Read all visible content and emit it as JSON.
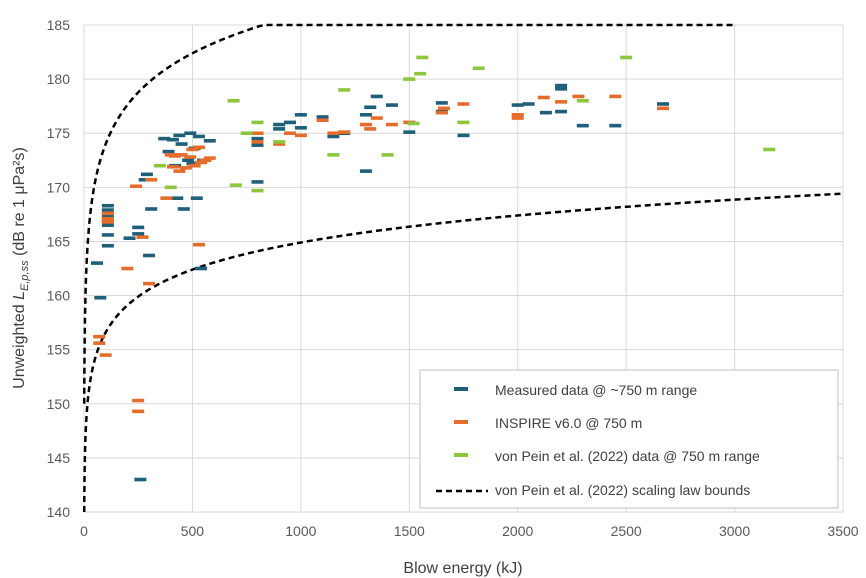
{
  "chart_data": {
    "type": "scatter",
    "xlabel": "Blow energy (kJ)",
    "ylabel_prefix": "Unweighted ",
    "ylabel_var": "L",
    "ylabel_sub": "E,p,ss",
    "ylabel_suffix": " (dB re 1 μPa²s)",
    "xlim": [
      0,
      3500
    ],
    "ylim": [
      140,
      185
    ],
    "xticks": [
      0,
      500,
      1000,
      1500,
      2000,
      2500,
      3000,
      3500
    ],
    "yticks": [
      140,
      145,
      150,
      155,
      160,
      165,
      170,
      175,
      180,
      185
    ],
    "grid": true,
    "legend_position": "bottom-right",
    "series": [
      {
        "name": "Measured data @ ~750 m range",
        "color": "#1f5f7a",
        "points": [
          [
            60,
            163
          ],
          [
            75,
            159.8
          ],
          [
            110,
            168.3
          ],
          [
            110,
            167.9
          ],
          [
            110,
            167.5
          ],
          [
            110,
            167.2
          ],
          [
            110,
            166.9
          ],
          [
            110,
            166.5
          ],
          [
            110,
            165.6
          ],
          [
            110,
            164.6
          ],
          [
            210,
            165.3
          ],
          [
            250,
            166.3
          ],
          [
            250,
            165.7
          ],
          [
            260,
            143
          ],
          [
            280,
            170.7
          ],
          [
            290,
            171.2
          ],
          [
            300,
            163.7
          ],
          [
            310,
            168
          ],
          [
            370,
            174.5
          ],
          [
            390,
            173.3
          ],
          [
            410,
            174.4
          ],
          [
            420,
            172
          ],
          [
            430,
            169
          ],
          [
            440,
            174.8
          ],
          [
            450,
            174
          ],
          [
            460,
            168
          ],
          [
            480,
            172.5
          ],
          [
            490,
            175
          ],
          [
            500,
            172.2
          ],
          [
            510,
            173.6
          ],
          [
            520,
            169
          ],
          [
            530,
            174.7
          ],
          [
            540,
            162.5
          ],
          [
            550,
            172.5
          ],
          [
            580,
            174.3
          ],
          [
            800,
            170.5
          ],
          [
            800,
            174.5
          ],
          [
            800,
            173.9
          ],
          [
            900,
            175.8
          ],
          [
            900,
            175.4
          ],
          [
            950,
            176
          ],
          [
            1000,
            176.7
          ],
          [
            1000,
            175.5
          ],
          [
            1100,
            176.5
          ],
          [
            1150,
            174.7
          ],
          [
            1200,
            175
          ],
          [
            1300,
            176.7
          ],
          [
            1300,
            171.5
          ],
          [
            1320,
            177.4
          ],
          [
            1350,
            178.4
          ],
          [
            1420,
            177.6
          ],
          [
            1500,
            175.1
          ],
          [
            1650,
            177.8
          ],
          [
            1650,
            177
          ],
          [
            1750,
            174.8
          ],
          [
            2000,
            177.6
          ],
          [
            2050,
            177.7
          ],
          [
            2130,
            176.9
          ],
          [
            2200,
            179.4
          ],
          [
            2200,
            179.1
          ],
          [
            2200,
            177
          ],
          [
            2300,
            175.7
          ],
          [
            2450,
            175.7
          ],
          [
            2670,
            177.7
          ]
        ]
      },
      {
        "name": "INSPIRE v6.0 @ 750 m",
        "color": "#e56d2c",
        "points": [
          [
            70,
            156.2
          ],
          [
            70,
            155.6
          ],
          [
            100,
            154.5
          ],
          [
            110,
            167.6
          ],
          [
            110,
            167.1
          ],
          [
            110,
            166.8
          ],
          [
            200,
            162.5
          ],
          [
            240,
            170.1
          ],
          [
            250,
            150.3
          ],
          [
            250,
            149.3
          ],
          [
            270,
            165.4
          ],
          [
            300,
            161.1
          ],
          [
            310,
            170.7
          ],
          [
            380,
            169
          ],
          [
            400,
            173
          ],
          [
            410,
            171.9
          ],
          [
            420,
            172.9
          ],
          [
            440,
            171.5
          ],
          [
            450,
            173
          ],
          [
            470,
            171.8
          ],
          [
            490,
            172.8
          ],
          [
            500,
            173.5
          ],
          [
            510,
            172
          ],
          [
            530,
            173.7
          ],
          [
            530,
            164.7
          ],
          [
            540,
            172.3
          ],
          [
            560,
            172.5
          ],
          [
            580,
            172.7
          ],
          [
            800,
            175
          ],
          [
            800,
            174.2
          ],
          [
            900,
            174
          ],
          [
            950,
            175
          ],
          [
            1000,
            174.8
          ],
          [
            1100,
            176.2
          ],
          [
            1150,
            175
          ],
          [
            1200,
            175.1
          ],
          [
            1300,
            175.8
          ],
          [
            1320,
            175.4
          ],
          [
            1350,
            176.4
          ],
          [
            1420,
            175.8
          ],
          [
            1500,
            176
          ],
          [
            1650,
            176.9
          ],
          [
            1660,
            177.3
          ],
          [
            1750,
            177.7
          ],
          [
            2000,
            176.7
          ],
          [
            2000,
            176.4
          ],
          [
            2120,
            178.3
          ],
          [
            2200,
            177.9
          ],
          [
            2280,
            178.4
          ],
          [
            2450,
            178.4
          ],
          [
            2670,
            177.3
          ]
        ]
      },
      {
        "name": "von Pein et al. (2022) data @ 750 m range",
        "color": "#8dc63f",
        "points": [
          [
            350,
            172
          ],
          [
            400,
            170
          ],
          [
            690,
            178
          ],
          [
            700,
            170.2
          ],
          [
            750,
            175
          ],
          [
            800,
            176
          ],
          [
            800,
            169.7
          ],
          [
            900,
            174.2
          ],
          [
            1150,
            173
          ],
          [
            1200,
            179
          ],
          [
            1400,
            173
          ],
          [
            1500,
            180
          ],
          [
            1520,
            175.9
          ],
          [
            1550,
            180.5
          ],
          [
            1560,
            182
          ],
          [
            1750,
            176
          ],
          [
            1820,
            181
          ],
          [
            2300,
            178
          ],
          [
            2500,
            182
          ],
          [
            3160,
            173.5
          ]
        ]
      }
    ],
    "bounds": {
      "name": "von Pein et al. (2022) scaling law bounds",
      "color": "#000000",
      "upper": [
        [
          1,
          150
        ],
        [
          2,
          153.6
        ],
        [
          5,
          158.4
        ],
        [
          10,
          162
        ],
        [
          20,
          165.6
        ],
        [
          50,
          170.4
        ],
        [
          100,
          174
        ],
        [
          200,
          177.6
        ],
        [
          300,
          179.7
        ],
        [
          500,
          182.4
        ],
        [
          750,
          184.5
        ],
        [
          1000,
          186
        ]
      ],
      "upper_eval": "upper: Lu(E)=174+12*log10(E/100), drawn to x=3000 clipped by ylim ends near 185",
      "lower": [
        [
          1,
          140
        ],
        [
          2,
          142.5
        ],
        [
          5,
          145.8
        ],
        [
          10,
          148.3
        ],
        [
          20,
          150.8
        ],
        [
          50,
          154.1
        ],
        [
          100,
          156.6
        ],
        [
          200,
          159.1
        ],
        [
          500,
          162.4
        ],
        [
          1000,
          164.9
        ],
        [
          2000,
          167.4
        ],
        [
          3500,
          169.8
        ]
      ],
      "lower_eval": "lower curve hand-fit"
    }
  }
}
